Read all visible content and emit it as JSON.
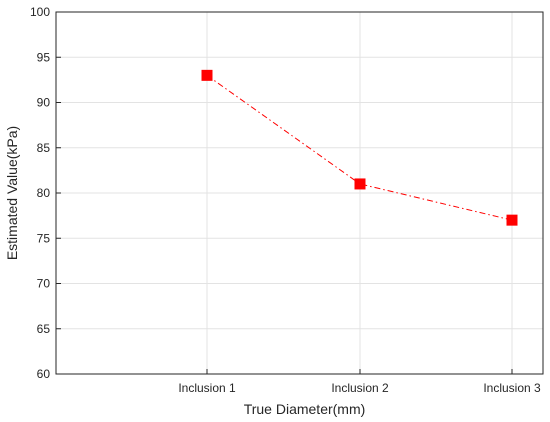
{
  "chart_data": {
    "type": "line",
    "title": "",
    "xlabel": "True Diameter(mm)",
    "ylabel": "Estimated Value(kPa)",
    "categories": [
      "Inclusion 1",
      "Inclusion 2",
      "Inclusion 3"
    ],
    "series": [
      {
        "values": [
          93,
          81,
          77
        ]
      }
    ],
    "ylim": [
      60,
      100
    ],
    "yticks": [
      60,
      65,
      70,
      75,
      80,
      85,
      90,
      95,
      100
    ],
    "grid": true,
    "legend": "none",
    "colors": {
      "series": "#ff0000",
      "grid": "#e3e3e3",
      "axis": "#262626"
    },
    "line_style": "dash-dot",
    "marker": "square"
  }
}
